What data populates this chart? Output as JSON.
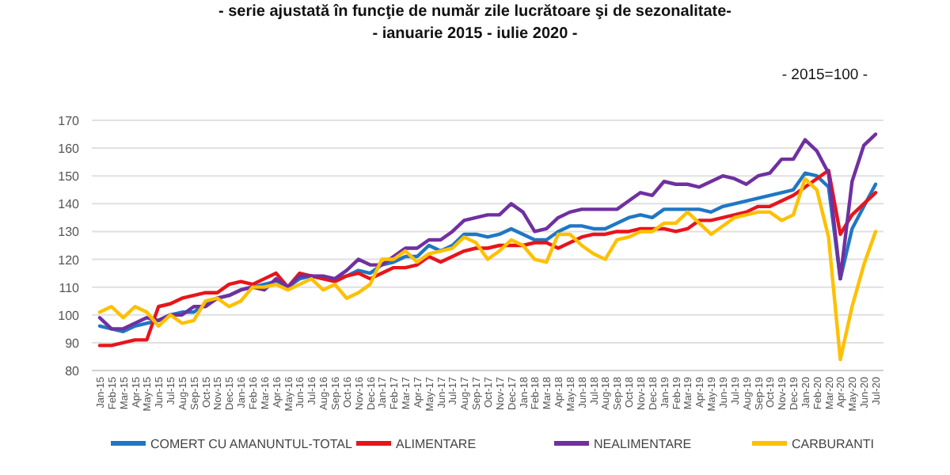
{
  "chart_data": {
    "type": "line",
    "title": "- serie ajustată în funcţie de număr zile lucrătoare şi de sezonalitate-",
    "subtitle": "- ianuarie 2015 -  iulie 2020  -",
    "annotations": [
      "- 2015=100 -"
    ],
    "categories": [
      "Jan-15",
      "Feb-15",
      "Mar-15",
      "Apr-15",
      "May-15",
      "Jun-15",
      "Jul-15",
      "Aug-15",
      "Sep-15",
      "Oct-15",
      "Nov-15",
      "Dec-15",
      "Jan-16",
      "Feb-16",
      "Mar-16",
      "Apr-16",
      "May-16",
      "Jun-16",
      "Jul-16",
      "Aug-16",
      "Sep-16",
      "Oct-16",
      "Nov-16",
      "Dec-16",
      "Jan-17",
      "Feb-17",
      "Mar-17",
      "Apr-17",
      "May-17",
      "Jun-17",
      "Jul-17",
      "Aug-17",
      "Sep-17",
      "Oct-17",
      "Nov-17",
      "Dec-17",
      "Jan-18",
      "Feb-18",
      "Mar-18",
      "Apr-18",
      "May-18",
      "Jun-18",
      "Jul-18",
      "Aug-18",
      "Sep-18",
      "Oct-18",
      "Nov-18",
      "Dec-18",
      "Jan-19",
      "Feb-19",
      "Mar-19",
      "Apr-19",
      "May-19",
      "Jun-19",
      "Jul-19",
      "Aug-19",
      "Sep-19",
      "Oct-19",
      "Nov-19",
      "Dec-19",
      "Jan-20",
      "Feb-20",
      "Mar-20",
      "Apr-20",
      "May-20",
      "Jun-20",
      "Jul-20"
    ],
    "series": [
      {
        "name": "COMERT CU AMANUNTUL-TOTAL",
        "color": "#1f77c4",
        "values": [
          96,
          95,
          94,
          96,
          97,
          98,
          100,
          101,
          101,
          104,
          106,
          107,
          109,
          110,
          111,
          112,
          110,
          113,
          114,
          113,
          113,
          114,
          116,
          115,
          118,
          119,
          121,
          121,
          125,
          123,
          125,
          129,
          129,
          128,
          129,
          131,
          129,
          127,
          127,
          130,
          132,
          132,
          131,
          131,
          133,
          135,
          136,
          135,
          138,
          138,
          138,
          138,
          137,
          139,
          140,
          141,
          142,
          143,
          144,
          145,
          151,
          150,
          146,
          113,
          131,
          139,
          147
        ]
      },
      {
        "name": "ALIMENTARE",
        "color": "#e8141c",
        "values": [
          89,
          89,
          90,
          91,
          91,
          103,
          104,
          106,
          107,
          108,
          108,
          111,
          112,
          111,
          113,
          115,
          110,
          115,
          114,
          113,
          112,
          114,
          115,
          113,
          115,
          117,
          117,
          118,
          121,
          119,
          121,
          123,
          124,
          124,
          125,
          125,
          125,
          126,
          126,
          124,
          126,
          128,
          129,
          129,
          130,
          130,
          131,
          131,
          131,
          130,
          131,
          134,
          134,
          135,
          136,
          137,
          139,
          139,
          141,
          143,
          146,
          149,
          152,
          129,
          136,
          140,
          144
        ]
      },
      {
        "name": "NEALIMENTARE",
        "color": "#7030a0",
        "values": [
          99,
          95,
          95,
          97,
          99,
          98,
          100,
          100,
          103,
          103,
          106,
          107,
          109,
          110,
          109,
          113,
          110,
          114,
          114,
          114,
          113,
          116,
          120,
          118,
          118,
          121,
          124,
          124,
          127,
          127,
          130,
          134,
          135,
          136,
          136,
          140,
          137,
          130,
          131,
          135,
          137,
          138,
          138,
          138,
          138,
          141,
          144,
          143,
          148,
          147,
          147,
          146,
          148,
          150,
          149,
          147,
          150,
          151,
          156,
          156,
          163,
          159,
          151,
          113,
          148,
          161,
          165
        ]
      },
      {
        "name": "CARBURANTI",
        "color": "#ffc000",
        "values": [
          101,
          103,
          99,
          103,
          101,
          96,
          100,
          97,
          98,
          105,
          106,
          103,
          105,
          110,
          110,
          111,
          109,
          111,
          113,
          109,
          111,
          106,
          108,
          111,
          120,
          120,
          123,
          119,
          122,
          123,
          124,
          128,
          126,
          120,
          123,
          127,
          125,
          120,
          119,
          129,
          129,
          125,
          122,
          120,
          127,
          128,
          130,
          130,
          133,
          133,
          137,
          133,
          129,
          132,
          135,
          136,
          137,
          137,
          134,
          136,
          149,
          145,
          128,
          84,
          103,
          118,
          130
        ]
      }
    ],
    "ylim": [
      80,
      170
    ],
    "yticks": [
      80,
      90,
      100,
      110,
      120,
      130,
      140,
      150,
      160,
      170
    ],
    "grid": "y",
    "legend": "bottom",
    "line_style": "solid",
    "marker": "none"
  }
}
